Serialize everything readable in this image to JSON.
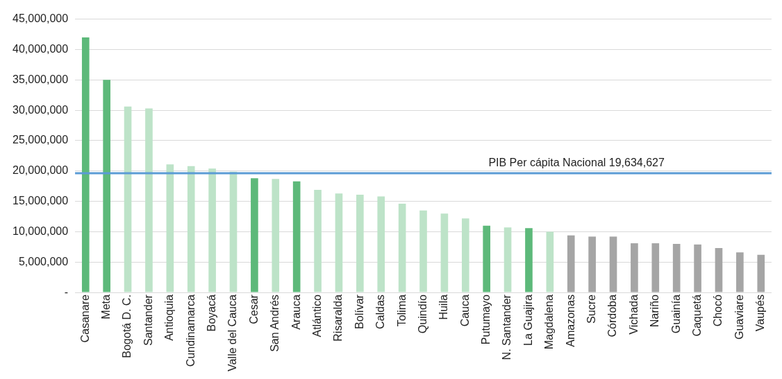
{
  "chart_data": {
    "type": "bar",
    "categories": [
      "Casanare",
      "Meta",
      "Bogotá D. C.",
      "Santander",
      "Antioquia",
      "Cundinamarca",
      "Boyacá",
      "Valle del Cauca",
      "Cesar",
      "San Andrés",
      "Arauca",
      "Atlántico",
      "Risaralda",
      "Bolívar",
      "Caldas",
      "Tolima",
      "Quindío",
      "Huila",
      "Cauca",
      "Putumayo",
      "N. Santander",
      "La Guajira",
      "Magdalena",
      "Amazonas",
      "Sucre",
      "Córdoba",
      "Vichada",
      "Nariño",
      "Guainía",
      "Caquetá",
      "Chocó",
      "Guaviare",
      "Vaupés"
    ],
    "values": [
      42000000,
      35000000,
      30600000,
      30300000,
      21100000,
      20800000,
      20400000,
      19900000,
      18800000,
      18700000,
      18300000,
      16900000,
      16300000,
      16100000,
      15800000,
      14600000,
      13500000,
      13000000,
      12200000,
      11000000,
      10700000,
      10600000,
      10000000,
      9400000,
      9200000,
      9200000,
      8100000,
      8100000,
      8000000,
      7900000,
      7300000,
      6600000,
      6200000
    ],
    "colors": [
      "#5db97a",
      "#5db97a",
      "#bde3c8",
      "#bde3c8",
      "#bde3c8",
      "#bde3c8",
      "#bde3c8",
      "#bde3c8",
      "#5db97a",
      "#bde3c8",
      "#5db97a",
      "#bde3c8",
      "#bde3c8",
      "#bde3c8",
      "#bde3c8",
      "#bde3c8",
      "#bde3c8",
      "#bde3c8",
      "#bde3c8",
      "#5db97a",
      "#bde3c8",
      "#5db97a",
      "#bde3c8",
      "#a5a5a5",
      "#a5a5a5",
      "#a5a5a5",
      "#a5a5a5",
      "#a5a5a5",
      "#a5a5a5",
      "#a5a5a5",
      "#a5a5a5",
      "#a5a5a5",
      "#a5a5a5"
    ],
    "ylim": [
      0,
      45000000
    ],
    "yticks": [
      {
        "value": 0,
        "label": "-"
      },
      {
        "value": 5000000,
        "label": "5,000,000"
      },
      {
        "value": 10000000,
        "label": "10,000,000"
      },
      {
        "value": 15000000,
        "label": "15,000,000"
      },
      {
        "value": 20000000,
        "label": "20,000,000"
      },
      {
        "value": 25000000,
        "label": "25,000,000"
      },
      {
        "value": 30000000,
        "label": "30,000,000"
      },
      {
        "value": 35000000,
        "label": "35,000,000"
      },
      {
        "value": 40000000,
        "label": "40,000,000"
      },
      {
        "value": 45000000,
        "label": "45,000,000"
      }
    ],
    "ref_lines": [
      {
        "axis": "y",
        "value": 19634627,
        "label": "PIB Per cápita Nacional 19,634,627",
        "color": "#5b9bd5"
      }
    ],
    "grid": "y",
    "legend": false
  }
}
